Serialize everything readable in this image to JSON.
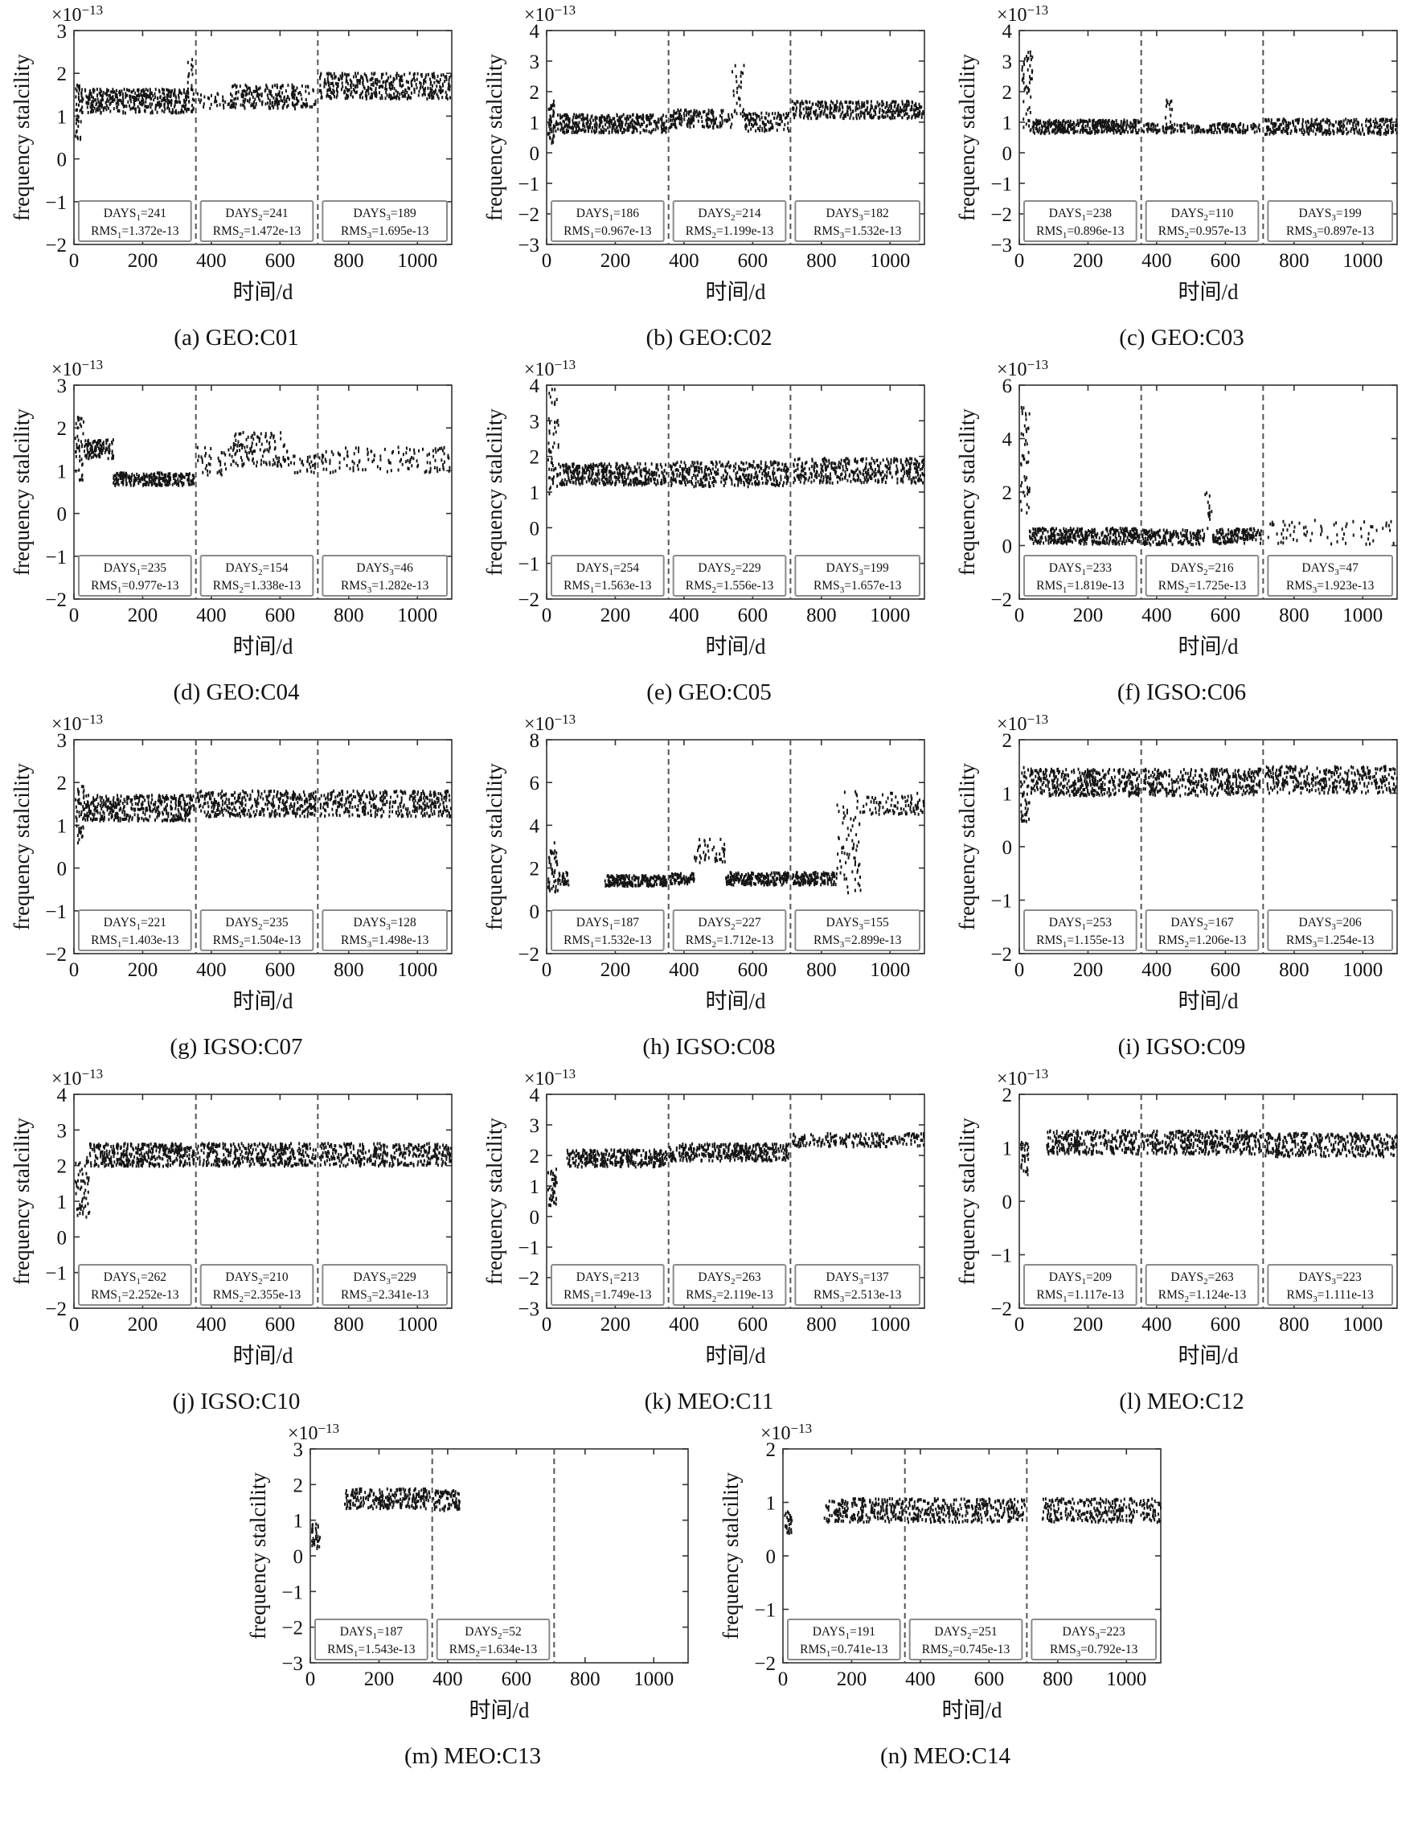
{
  "figure": {
    "scale_base": "×10",
    "scale_exp": "−13",
    "ylabel": "frequency stalcility",
    "xlabel": "时间/d",
    "xlim": [
      0,
      1100
    ],
    "xticks": [
      0,
      200,
      400,
      600,
      800,
      1000
    ],
    "dashed_x": [
      355,
      710
    ],
    "days_word": "DAYS",
    "rms_word": "RMS",
    "point_color": "#151515",
    "axis_color": "#333333",
    "box_border_color": "#8a8a8a",
    "dash_color": "#555555"
  },
  "chart_data": [
    {
      "type": "scatter",
      "caption": "(a) GEO:C01",
      "ylim": [
        -2,
        3
      ],
      "yticks": [
        -2,
        -1,
        0,
        1,
        2,
        3
      ],
      "annotations": [
        {
          "idx": "1",
          "days": "241",
          "rms": "1.372e-13"
        },
        {
          "idx": "2",
          "days": "241",
          "rms": "1.472e-13"
        },
        {
          "idx": "3",
          "days": "189",
          "rms": "1.695e-13"
        }
      ],
      "segments": [
        [
          4,
          22,
          40,
          1.1,
          0.65
        ],
        [
          22,
          350,
          420,
          1.35,
          0.28
        ],
        [
          330,
          346,
          14,
          1.9,
          0.5
        ],
        [
          358,
          460,
          36,
          1.35,
          0.2
        ],
        [
          460,
          705,
          230,
          1.45,
          0.28
        ],
        [
          715,
          1100,
          420,
          1.7,
          0.3
        ]
      ]
    },
    {
      "type": "scatter",
      "caption": "(b) GEO:C02",
      "ylim": [
        -3,
        4
      ],
      "yticks": [
        -3,
        -2,
        -1,
        0,
        1,
        2,
        3,
        4
      ],
      "annotations": [
        {
          "idx": "1",
          "days": "186",
          "rms": "0.967e-13"
        },
        {
          "idx": "2",
          "days": "214",
          "rms": "1.199e-13"
        },
        {
          "idx": "3",
          "days": "182",
          "rms": "1.532e-13"
        }
      ],
      "segments": [
        [
          4,
          25,
          45,
          1.0,
          0.7
        ],
        [
          25,
          350,
          380,
          0.95,
          0.3
        ],
        [
          358,
          540,
          160,
          1.1,
          0.3
        ],
        [
          540,
          575,
          28,
          2.0,
          0.9
        ],
        [
          575,
          705,
          120,
          1.0,
          0.3
        ],
        [
          715,
          1100,
          380,
          1.4,
          0.28
        ]
      ]
    },
    {
      "type": "scatter",
      "caption": "(c) GEO:C03",
      "ylim": [
        -3,
        4
      ],
      "yticks": [
        -3,
        -2,
        -1,
        0,
        1,
        2,
        3,
        4
      ],
      "annotations": [
        {
          "idx": "1",
          "days": "238",
          "rms": "0.896e-13"
        },
        {
          "idx": "2",
          "days": "110",
          "rms": "0.957e-13"
        },
        {
          "idx": "3",
          "days": "199",
          "rms": "0.897e-13"
        }
      ],
      "segments": [
        [
          8,
          40,
          50,
          2.0,
          1.3
        ],
        [
          40,
          350,
          380,
          0.85,
          0.22
        ],
        [
          358,
          700,
          210,
          0.8,
          0.15
        ],
        [
          425,
          445,
          14,
          1.4,
          0.45
        ],
        [
          715,
          1100,
          330,
          0.85,
          0.25
        ]
      ]
    },
    {
      "type": "scatter",
      "caption": "(d) GEO:C04",
      "ylim": [
        -2,
        3
      ],
      "yticks": [
        -2,
        -1,
        0,
        1,
        2,
        3
      ],
      "annotations": [
        {
          "idx": "1",
          "days": "235",
          "rms": "0.977e-13"
        },
        {
          "idx": "2",
          "days": "154",
          "rms": "1.338e-13"
        },
        {
          "idx": "3",
          "days": "46",
          "rms": "1.282e-13"
        }
      ],
      "segments": [
        [
          4,
          30,
          40,
          1.5,
          0.75
        ],
        [
          30,
          115,
          110,
          1.5,
          0.22
        ],
        [
          115,
          350,
          260,
          0.8,
          0.15
        ],
        [
          358,
          460,
          40,
          1.2,
          0.35
        ],
        [
          460,
          630,
          130,
          1.5,
          0.4
        ],
        [
          630,
          705,
          30,
          1.15,
          0.2
        ],
        [
          715,
          1100,
          130,
          1.25,
          0.3
        ]
      ]
    },
    {
      "type": "scatter",
      "caption": "(e) GEO:C05",
      "ylim": [
        -2,
        4
      ],
      "yticks": [
        -2,
        -1,
        0,
        1,
        2,
        3,
        4
      ],
      "annotations": [
        {
          "idx": "1",
          "days": "254",
          "rms": "1.563e-13"
        },
        {
          "idx": "2",
          "days": "229",
          "rms": "1.556e-13"
        },
        {
          "idx": "3",
          "days": "199",
          "rms": "1.657e-13"
        }
      ],
      "segments": [
        [
          4,
          35,
          55,
          2.4,
          1.5
        ],
        [
          35,
          350,
          420,
          1.5,
          0.3
        ],
        [
          358,
          705,
          380,
          1.5,
          0.35
        ],
        [
          715,
          1100,
          380,
          1.6,
          0.35
        ]
      ]
    },
    {
      "type": "scatter",
      "caption": "(f) IGSO:C06",
      "ylim": [
        -2,
        6
      ],
      "yticks": [
        -2,
        0,
        2,
        4,
        6
      ],
      "annotations": [
        {
          "idx": "1",
          "days": "233",
          "rms": "1.819e-13"
        },
        {
          "idx": "2",
          "days": "216",
          "rms": "1.725e-13"
        },
        {
          "idx": "3",
          "days": "47",
          "rms": "1.923e-13"
        }
      ],
      "segments": [
        [
          4,
          30,
          45,
          3.2,
          2.0
        ],
        [
          30,
          350,
          380,
          0.35,
          0.3
        ],
        [
          358,
          540,
          180,
          0.3,
          0.28
        ],
        [
          540,
          560,
          14,
          1.3,
          0.7
        ],
        [
          560,
          705,
          140,
          0.35,
          0.28
        ],
        [
          715,
          1100,
          70,
          0.5,
          0.45
        ]
      ]
    },
    {
      "type": "scatter",
      "caption": "(g) IGSO:C07",
      "ylim": [
        -2,
        3
      ],
      "yticks": [
        -2,
        -1,
        0,
        1,
        2,
        3
      ],
      "annotations": [
        {
          "idx": "1",
          "days": "221",
          "rms": "1.403e-13"
        },
        {
          "idx": "2",
          "days": "235",
          "rms": "1.504e-13"
        },
        {
          "idx": "3",
          "days": "128",
          "rms": "1.498e-13"
        }
      ],
      "segments": [
        [
          4,
          30,
          45,
          1.3,
          0.75
        ],
        [
          30,
          350,
          420,
          1.4,
          0.3
        ],
        [
          358,
          705,
          380,
          1.5,
          0.3
        ],
        [
          715,
          1100,
          380,
          1.5,
          0.3
        ]
      ]
    },
    {
      "type": "scatter",
      "caption": "(h) IGSO:C08",
      "ylim": [
        -2,
        8
      ],
      "yticks": [
        -2,
        0,
        2,
        4,
        6,
        8
      ],
      "annotations": [
        {
          "idx": "1",
          "days": "187",
          "rms": "1.532e-13"
        },
        {
          "idx": "2",
          "days": "227",
          "rms": "1.712e-13"
        },
        {
          "idx": "3",
          "days": "155",
          "rms": "2.899e-13"
        }
      ],
      "segments": [
        [
          4,
          35,
          50,
          2.0,
          1.2
        ],
        [
          35,
          65,
          30,
          1.5,
          0.3
        ],
        [
          170,
          350,
          220,
          1.4,
          0.25
        ],
        [
          358,
          430,
          70,
          1.5,
          0.25
        ],
        [
          430,
          520,
          45,
          2.8,
          0.55
        ],
        [
          520,
          705,
          210,
          1.5,
          0.3
        ],
        [
          715,
          845,
          150,
          1.5,
          0.3
        ],
        [
          845,
          915,
          70,
          3.2,
          2.4
        ],
        [
          920,
          1100,
          90,
          5.0,
          0.5
        ]
      ]
    },
    {
      "type": "scatter",
      "caption": "(i) IGSO:C09",
      "ylim": [
        -2,
        2
      ],
      "yticks": [
        -2,
        -1,
        0,
        1,
        2
      ],
      "annotations": [
        {
          "idx": "1",
          "days": "253",
          "rms": "1.155e-13"
        },
        {
          "idx": "2",
          "days": "167",
          "rms": "1.206e-13"
        },
        {
          "idx": "3",
          "days": "206",
          "rms": "1.254e-13"
        }
      ],
      "segments": [
        [
          4,
          30,
          40,
          1.0,
          0.55
        ],
        [
          30,
          350,
          420,
          1.2,
          0.25
        ],
        [
          358,
          705,
          380,
          1.2,
          0.25
        ],
        [
          715,
          1100,
          380,
          1.25,
          0.25
        ]
      ]
    },
    {
      "type": "scatter",
      "caption": "(j) IGSO:C10",
      "ylim": [
        -2,
        4
      ],
      "yticks": [
        -2,
        -1,
        0,
        1,
        2,
        3,
        4
      ],
      "annotations": [
        {
          "idx": "1",
          "days": "262",
          "rms": "2.252e-13"
        },
        {
          "idx": "2",
          "days": "210",
          "rms": "2.355e-13"
        },
        {
          "idx": "3",
          "days": "229",
          "rms": "2.341e-13"
        }
      ],
      "segments": [
        [
          4,
          45,
          55,
          1.4,
          0.85
        ],
        [
          45,
          350,
          400,
          2.3,
          0.32
        ],
        [
          358,
          705,
          380,
          2.3,
          0.32
        ],
        [
          715,
          1100,
          380,
          2.3,
          0.32
        ]
      ]
    },
    {
      "type": "scatter",
      "caption": "(k) MEO:C11",
      "ylim": [
        -3,
        4
      ],
      "yticks": [
        -3,
        -2,
        -1,
        0,
        1,
        2,
        3,
        4
      ],
      "annotations": [
        {
          "idx": "1",
          "days": "213",
          "rms": "1.749e-13"
        },
        {
          "idx": "2",
          "days": "263",
          "rms": "2.119e-13"
        },
        {
          "idx": "3",
          "days": "137",
          "rms": "2.513e-13"
        }
      ],
      "segments": [
        [
          4,
          30,
          40,
          0.95,
          0.6
        ],
        [
          60,
          350,
          340,
          1.9,
          0.28
        ],
        [
          358,
          705,
          380,
          2.1,
          0.28
        ],
        [
          715,
          1100,
          200,
          2.5,
          0.22
        ]
      ]
    },
    {
      "type": "scatter",
      "caption": "(l) MEO:C12",
      "ylim": [
        -2,
        2
      ],
      "yticks": [
        -2,
        -1,
        0,
        1,
        2
      ],
      "annotations": [
        {
          "idx": "1",
          "days": "209",
          "rms": "1.117e-13"
        },
        {
          "idx": "2",
          "days": "263",
          "rms": "1.124e-13"
        },
        {
          "idx": "3",
          "days": "223",
          "rms": "1.111e-13"
        }
      ],
      "segments": [
        [
          4,
          28,
          30,
          0.8,
          0.3
        ],
        [
          80,
          350,
          300,
          1.1,
          0.22
        ],
        [
          358,
          705,
          380,
          1.1,
          0.22
        ],
        [
          715,
          1100,
          380,
          1.05,
          0.22
        ]
      ]
    },
    {
      "type": "scatter",
      "caption": "(m) MEO:C13",
      "ylim": [
        -3,
        3
      ],
      "yticks": [
        -3,
        -2,
        -1,
        0,
        1,
        2,
        3
      ],
      "annotations": [
        {
          "idx": "1",
          "days": "187",
          "rms": "1.543e-13"
        },
        {
          "idx": "2",
          "days": "52",
          "rms": "1.634e-13"
        }
      ],
      "segments": [
        [
          4,
          28,
          32,
          0.55,
          0.35
        ],
        [
          100,
          350,
          260,
          1.6,
          0.28
        ],
        [
          358,
          435,
          85,
          1.55,
          0.28
        ]
      ]
    },
    {
      "type": "scatter",
      "caption": "(n) MEO:C14",
      "ylim": [
        -2,
        2
      ],
      "yticks": [
        -2,
        -1,
        0,
        1,
        2
      ],
      "annotations": [
        {
          "idx": "1",
          "days": "191",
          "rms": "0.741e-13"
        },
        {
          "idx": "2",
          "days": "251",
          "rms": "0.745e-13"
        },
        {
          "idx": "3",
          "days": "223",
          "rms": "0.792e-13"
        }
      ],
      "segments": [
        [
          4,
          26,
          30,
          0.62,
          0.2
        ],
        [
          120,
          350,
          250,
          0.85,
          0.22
        ],
        [
          358,
          705,
          320,
          0.85,
          0.22
        ],
        [
          755,
          1100,
          300,
          0.85,
          0.22
        ]
      ]
    }
  ]
}
